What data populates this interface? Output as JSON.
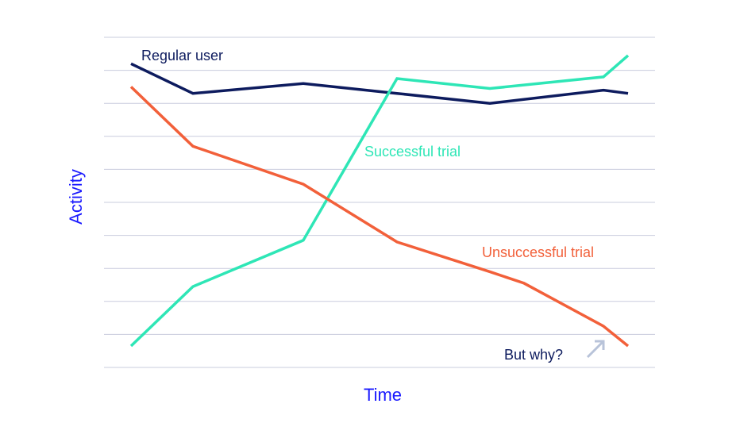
{
  "chart_data": {
    "type": "line",
    "title": "",
    "xlabel": "Time",
    "ylabel": "Activity",
    "grid": true,
    "ylim": [
      0,
      10
    ],
    "x": [
      1,
      2,
      3,
      4,
      5,
      6,
      7,
      7.4
    ],
    "series": [
      {
        "name": "Regular user",
        "color": "#0d1b5e",
        "x": [
          1,
          2,
          3.8,
          5.5,
          6.5,
          8.4,
          9.5
        ],
        "values": [
          9.2,
          8.3,
          8.6,
          8.3,
          8.1,
          8.5,
          8.35
        ]
      },
      {
        "name": "Successful trial",
        "color": "#2ee6b6",
        "x": [
          1,
          2,
          3.8,
          5.5,
          6.5,
          8.4,
          9.5
        ],
        "values": [
          0.65,
          2.45,
          3.85,
          8.75,
          8.45,
          8.8,
          9.45
        ]
      },
      {
        "name": "Unsuccessful trial",
        "color": "#f2603a",
        "x": [
          1,
          2,
          3.8,
          5.5,
          6.5,
          8.4,
          9.5
        ],
        "values": [
          8.5,
          6.7,
          5.55,
          3.8,
          3.15,
          2.7,
          0.65
        ]
      }
    ],
    "x_points": [
      1.0,
      2.0,
      3.8,
      5.5,
      7.45,
      9.5,
      10.0
    ],
    "annotations": [
      {
        "text": "But why?",
        "color": "#0d1b5e",
        "arrow_color": "#b8c3d9"
      }
    ]
  }
}
